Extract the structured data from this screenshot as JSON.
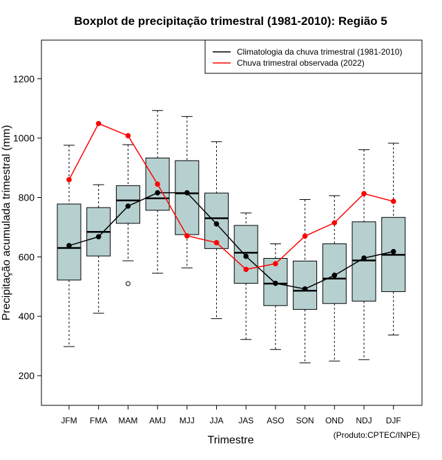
{
  "chart_data": {
    "type": "boxplot",
    "title": "Boxplot de precipitação trimestral (1981-2010): Região 5",
    "xlabel": "Trimestre",
    "ylabel": "Precipitação acumulada trimestral (mm)",
    "credit": "(Produto:CPTEC/INPE)",
    "ylim": [
      100,
      1330
    ],
    "yticks": [
      200,
      400,
      600,
      800,
      1000,
      1200
    ],
    "categories": [
      "JFM",
      "FMA",
      "MAM",
      "AMJ",
      "MJJ",
      "JJA",
      "JAS",
      "ASO",
      "SON",
      "OND",
      "NDJ",
      "DJF"
    ],
    "boxes": [
      {
        "whisker_low": 298,
        "q1": 522,
        "median": 630,
        "q3": 778,
        "whisker_high": 976,
        "outliers": []
      },
      {
        "whisker_low": 410,
        "q1": 603,
        "median": 684,
        "q3": 766,
        "whisker_high": 843,
        "outliers": []
      },
      {
        "whisker_low": 587,
        "q1": 713,
        "median": 790,
        "q3": 840,
        "whisker_high": 978,
        "outliers": [
          510
        ]
      },
      {
        "whisker_low": 545,
        "q1": 757,
        "median": 797,
        "q3": 933,
        "whisker_high": 1093,
        "outliers": []
      },
      {
        "whisker_low": 563,
        "q1": 675,
        "median": 814,
        "q3": 924,
        "whisker_high": 1073,
        "outliers": []
      },
      {
        "whisker_low": 392,
        "q1": 628,
        "median": 730,
        "q3": 815,
        "whisker_high": 988,
        "outliers": []
      },
      {
        "whisker_low": 322,
        "q1": 511,
        "median": 614,
        "q3": 706,
        "whisker_high": 748,
        "outliers": []
      },
      {
        "whisker_low": 288,
        "q1": 436,
        "median": 510,
        "q3": 595,
        "whisker_high": 644,
        "outliers": []
      },
      {
        "whisker_low": 243,
        "q1": 423,
        "median": 486,
        "q3": 586,
        "whisker_high": 793,
        "outliers": []
      },
      {
        "whisker_low": 249,
        "q1": 443,
        "median": 527,
        "q3": 644,
        "whisker_high": 806,
        "outliers": []
      },
      {
        "whisker_low": 254,
        "q1": 451,
        "median": 588,
        "q3": 718,
        "whisker_high": 961,
        "outliers": []
      },
      {
        "whisker_low": 337,
        "q1": 483,
        "median": 607,
        "q3": 733,
        "whisker_high": 983,
        "outliers": []
      }
    ],
    "series": [
      {
        "name": "Climatologia da chuva trimestral (1981-2010)",
        "color": "#000000",
        "values": [
          638,
          668,
          771,
          816,
          816,
          711,
          602,
          511,
          492,
          538,
          596,
          618
        ]
      },
      {
        "name": "Chuva trimestral observada (2022)",
        "color": "#ff0000",
        "values": [
          860,
          1049,
          1008,
          845,
          671,
          648,
          558,
          577,
          670,
          715,
          813,
          787
        ]
      }
    ],
    "box_fill": "#b6d0d0",
    "legend_position": "top-right"
  }
}
